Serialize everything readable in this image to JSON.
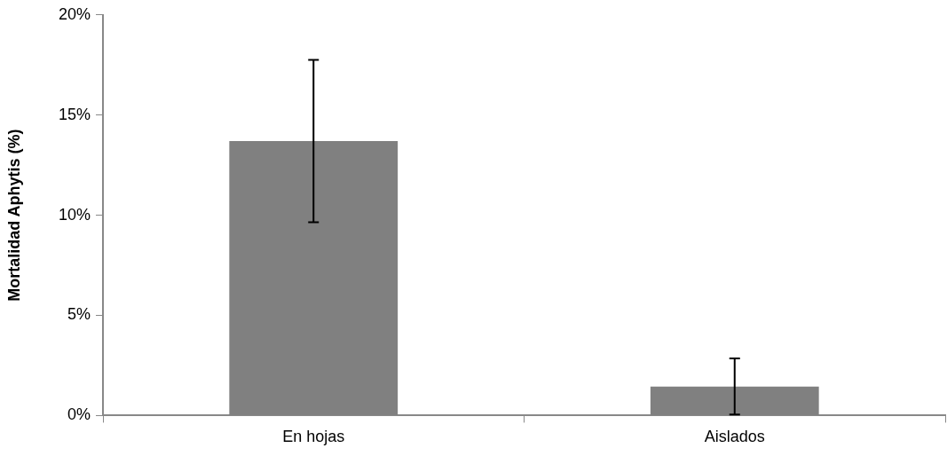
{
  "chart_data": {
    "type": "bar",
    "ylabel": "Mortalidad Aphytis (%)",
    "categories": [
      "En hojas",
      "Aislados"
    ],
    "values": [
      13.7,
      1.45
    ],
    "color": "#808080",
    "errors": [
      [
        9.65,
        17.75
      ],
      [
        0.05,
        2.85
      ]
    ],
    "ylim": [
      0,
      20
    ],
    "yticks": [
      {
        "value": 0,
        "label": "0%"
      },
      {
        "value": 5,
        "label": "5%"
      },
      {
        "value": 10,
        "label": "10%"
      },
      {
        "value": 15,
        "label": "15%"
      },
      {
        "value": 20,
        "label": "20%"
      }
    ],
    "grid": false,
    "legend": false
  }
}
